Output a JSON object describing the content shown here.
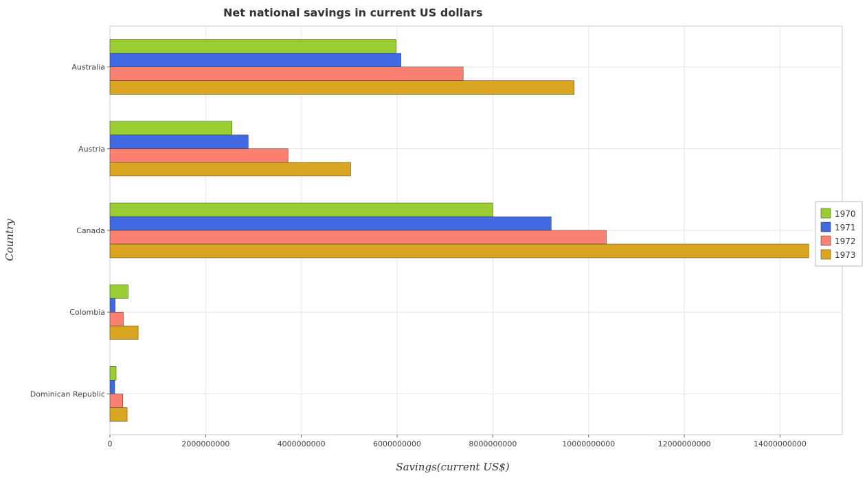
{
  "chart_data": {
    "type": "bar",
    "orientation": "horizontal",
    "title": "Net national savings in current US dollars",
    "xlabel": "Savings(current US$)",
    "ylabel": "Country",
    "categories": [
      "Australia",
      "Austria",
      "Canada",
      "Colombia",
      "Dominican Republic"
    ],
    "series": [
      {
        "name": "1970",
        "color": "#9acd32",
        "values": [
          5980000000,
          2550000000,
          8000000000,
          380000000,
          130000000
        ]
      },
      {
        "name": "1971",
        "color": "#4169e1",
        "values": [
          6080000000,
          2890000000,
          9220000000,
          110000000,
          100000000
        ]
      },
      {
        "name": "1972",
        "color": "#fa8072",
        "values": [
          7380000000,
          3720000000,
          10370000000,
          280000000,
          270000000
        ]
      },
      {
        "name": "1973",
        "color": "#daa520",
        "values": [
          9700000000,
          5030000000,
          14600000000,
          590000000,
          360000000
        ]
      }
    ],
    "xlim": [
      0,
      15300000000
    ],
    "xticks": [
      0,
      2000000000,
      4000000000,
      6000000000,
      8000000000,
      10000000000,
      12000000000,
      14000000000
    ],
    "xtick_labels": [
      "0",
      "2000000000",
      "4000000000",
      "6000000000",
      "8000000000",
      "10000000000",
      "12000000000",
      "14000000000"
    ],
    "grid": true,
    "legend_position": "right"
  }
}
